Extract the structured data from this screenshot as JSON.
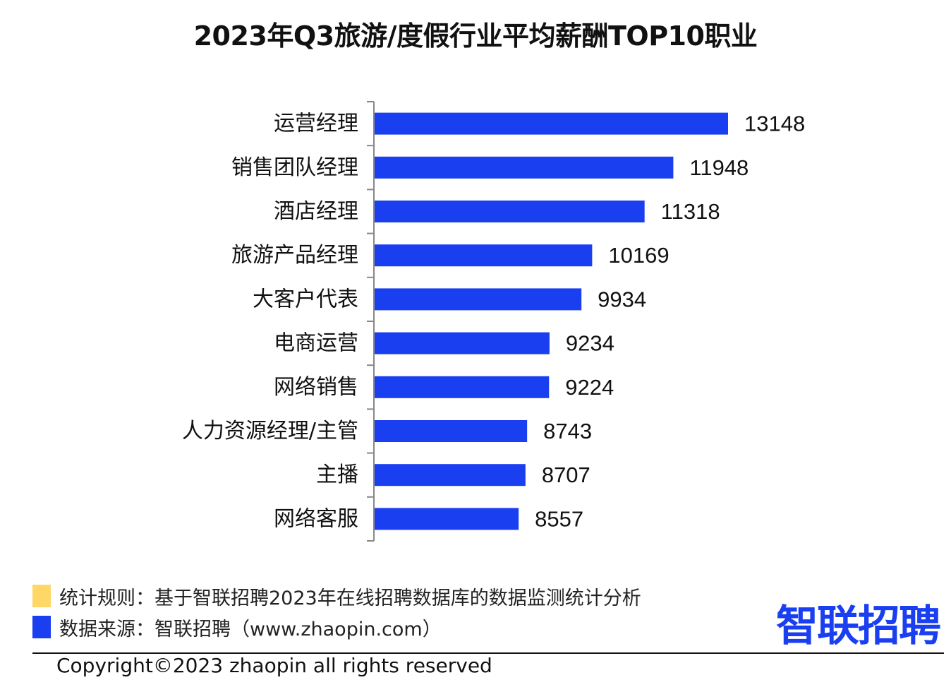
{
  "title": "2023年Q3旅游/度假行业平均薪酬TOP10职业",
  "chart_data": {
    "type": "bar",
    "orientation": "horizontal",
    "title": "2023年Q3旅游/度假行业平均薪酬TOP10职业",
    "categories": [
      "运营经理",
      "销售团队经理",
      "酒店经理",
      "旅游产品经理",
      "大客户代表",
      "电商运营",
      "网络销售",
      "人力资源经理/主管",
      "主播",
      "网络客服"
    ],
    "values": [
      13148,
      11948,
      11318,
      10169,
      9934,
      9234,
      9224,
      8743,
      8707,
      8557
    ],
    "value_labels": [
      "13148",
      "11948",
      "11318",
      "10169",
      "9934",
      "9234",
      "9224",
      "8743",
      "8707",
      "8557"
    ],
    "xlim": [
      5400,
      13148
    ],
    "bar_color": "#1a3ff0",
    "data_labels": true,
    "grid": false
  },
  "notes": {
    "rule": "统计规则：基于智联招聘2023年在线招聘数据库的数据监测统计分析",
    "source": "数据来源：智联招聘（www.zhaopin.com）",
    "rule_color": "#ffd766",
    "source_color": "#1a3ff0"
  },
  "logo": {
    "text": "智联招聘",
    "color": "#1a3ff0",
    "dot_color": "#ffc20e"
  },
  "copyright": "Copyright©2023 zhaopin all rights reserved"
}
